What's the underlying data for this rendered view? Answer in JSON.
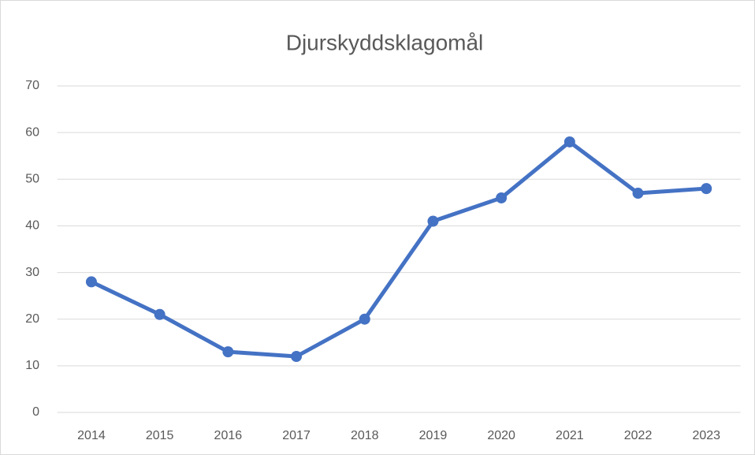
{
  "chart_data": {
    "type": "line",
    "title": "Djurskyddsklagomål",
    "categories": [
      "2014",
      "2015",
      "2016",
      "2017",
      "2018",
      "2019",
      "2020",
      "2021",
      "2022",
      "2023"
    ],
    "series": [
      {
        "name": "Djurskyddsklagomål",
        "color": "#4472c4",
        "values": [
          28,
          21,
          13,
          12,
          20,
          41,
          46,
          58,
          47,
          48
        ]
      }
    ],
    "ylim": [
      0,
      70
    ],
    "yticks": [
      0,
      10,
      20,
      30,
      40,
      50,
      60,
      70
    ],
    "grid": true
  }
}
